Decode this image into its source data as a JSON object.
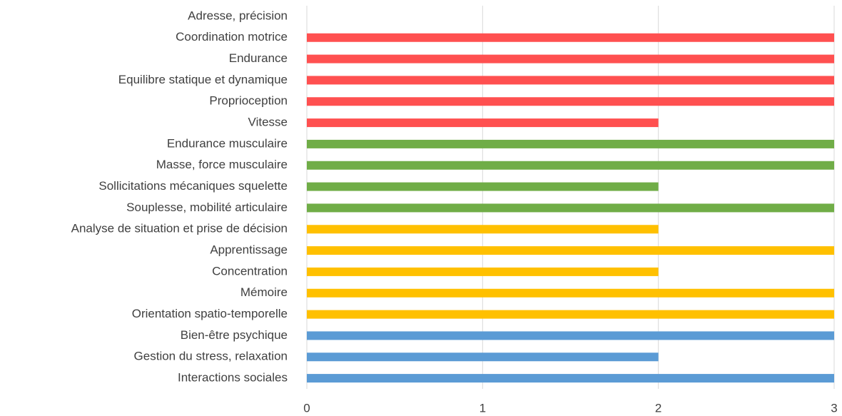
{
  "chart_data": {
    "type": "bar",
    "orientation": "horizontal",
    "categories": [
      "Adresse, précision",
      "Coordination motrice",
      "Endurance",
      "Equilibre statique et dynamique",
      "Proprioception",
      "Vitesse",
      "Endurance musculaire ",
      "Masse,  force musculaire",
      "Sollicitations mécaniques squelette",
      "Souplesse, mobilité articulaire",
      "Analyse de situation et prise de décision",
      "Apprentissage",
      "Concentration",
      "Mémoire",
      "Orientation spatio-temporelle",
      "Bien-être psychique",
      "Gestion du stress, relaxation",
      "Interactions sociales"
    ],
    "values": [
      null,
      3,
      3,
      3,
      3,
      2,
      3,
      3,
      2,
      3,
      2,
      3,
      2,
      3,
      3,
      3,
      2,
      3
    ],
    "colors": [
      "#ff5050",
      "#ff5050",
      "#ff5050",
      "#ff5050",
      "#ff5050",
      "#ff5050",
      "#70ad47",
      "#70ad47",
      "#70ad47",
      "#70ad47",
      "#ffc000",
      "#ffc000",
      "#ffc000",
      "#ffc000",
      "#ffc000",
      "#5b9bd5",
      "#5b9bd5",
      "#5b9bd5"
    ],
    "xlim": [
      0,
      3
    ],
    "xticks": [
      0,
      1,
      2,
      3
    ],
    "grid": true
  }
}
